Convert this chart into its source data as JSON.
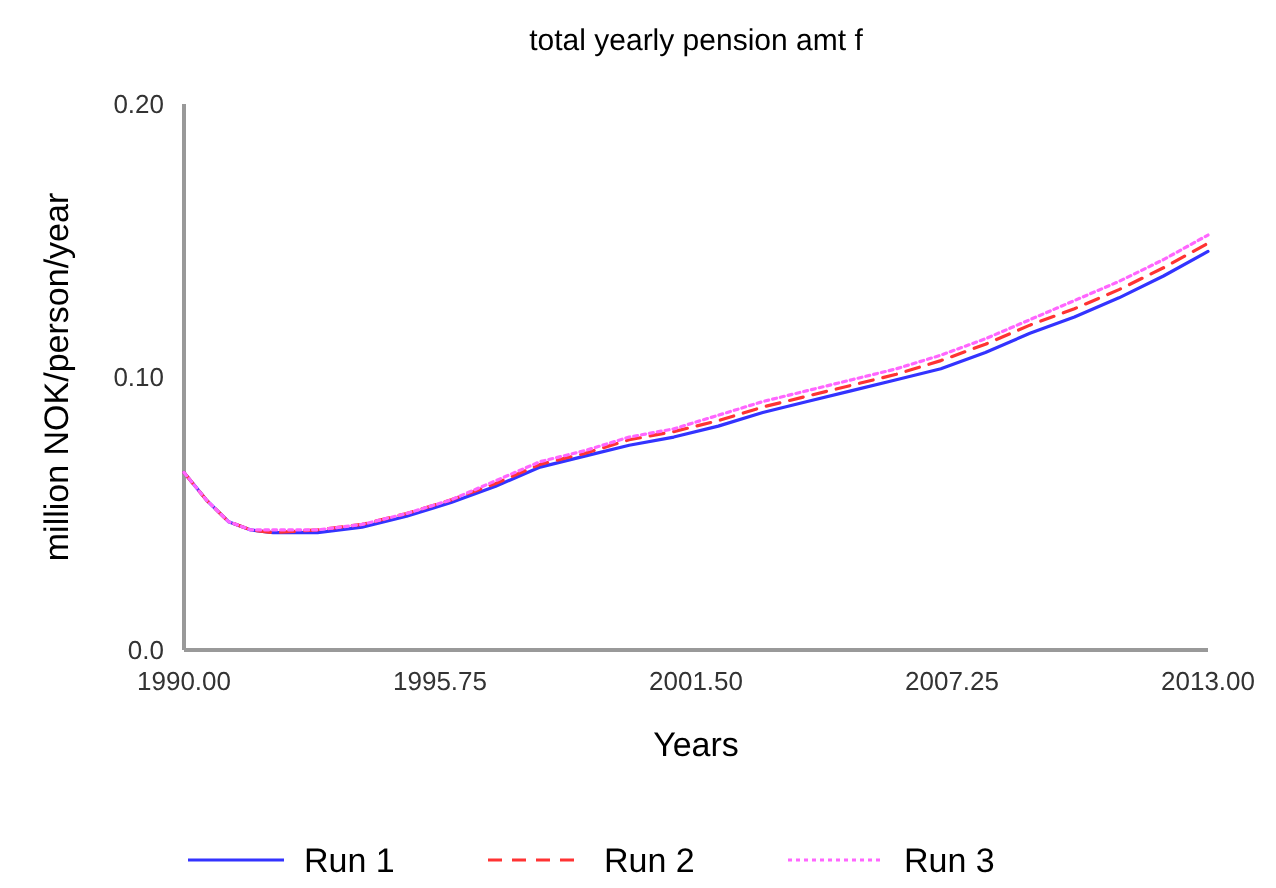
{
  "chart_data": {
    "type": "line",
    "title": "total yearly pension amt f",
    "xlabel": "Years",
    "ylabel": "million NOK/person/year",
    "x": [
      1990,
      1990.5,
      1991,
      1991.5,
      1992,
      1993,
      1994,
      1995,
      1996,
      1997,
      1998,
      1999,
      2000,
      2001,
      2002,
      2003,
      2004,
      2005,
      2006,
      2007,
      2008,
      2009,
      2010,
      2011,
      2012,
      2013
    ],
    "xlim": [
      1990,
      2013
    ],
    "xticks": [
      {
        "value": 1990,
        "label": "1990.00"
      },
      {
        "value": 1995.75,
        "label": "1995.75"
      },
      {
        "value": 2001.5,
        "label": "2001.50"
      },
      {
        "value": 2007.25,
        "label": "2007.25"
      },
      {
        "value": 2013,
        "label": "2013.00"
      }
    ],
    "ylim": [
      0,
      0.2
    ],
    "yticks": [
      {
        "value": 0,
        "label": "0.0"
      },
      {
        "value": 0.1,
        "label": "0.10"
      },
      {
        "value": 0.2,
        "label": "0.20"
      }
    ],
    "grid": false,
    "legend": "bottom",
    "series": [
      {
        "name": "Run 1",
        "color": "#3333ff",
        "line_style": "solid",
        "values": [
          0.065,
          0.055,
          0.047,
          0.044,
          0.043,
          0.043,
          0.045,
          0.049,
          0.054,
          0.06,
          0.067,
          0.071,
          0.075,
          0.078,
          0.082,
          0.087,
          0.091,
          0.095,
          0.099,
          0.103,
          0.109,
          0.116,
          0.122,
          0.129,
          0.137,
          0.146
        ]
      },
      {
        "name": "Run 2",
        "color": "#ff3333",
        "line_style": "dashed",
        "values": [
          0.065,
          0.055,
          0.047,
          0.044,
          0.043,
          0.044,
          0.046,
          0.05,
          0.055,
          0.061,
          0.068,
          0.072,
          0.077,
          0.08,
          0.084,
          0.089,
          0.093,
          0.097,
          0.101,
          0.106,
          0.112,
          0.119,
          0.125,
          0.132,
          0.14,
          0.149
        ]
      },
      {
        "name": "Run 3",
        "color": "#ff66ff",
        "line_style": "dotted",
        "values": [
          0.065,
          0.055,
          0.047,
          0.044,
          0.044,
          0.044,
          0.046,
          0.05,
          0.055,
          0.062,
          0.069,
          0.073,
          0.078,
          0.081,
          0.086,
          0.091,
          0.095,
          0.099,
          0.103,
          0.108,
          0.114,
          0.121,
          0.128,
          0.135,
          0.143,
          0.152
        ]
      }
    ]
  }
}
